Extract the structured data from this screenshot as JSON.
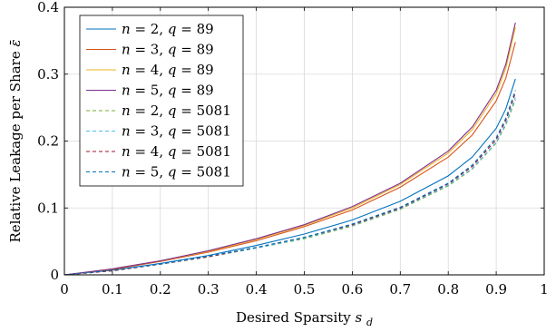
{
  "chart_data": {
    "type": "line",
    "title": "",
    "xlabel": "Desired Sparsity",
    "xlabel_symbol": "s",
    "xlabel_subscript": "d",
    "ylabel": "Relative Leakage per Share",
    "ylabel_symbol": "ε̄",
    "xlim": [
      0,
      1
    ],
    "ylim": [
      0,
      0.4
    ],
    "xticks": [
      0,
      0.1,
      0.2,
      0.3,
      0.4,
      0.5,
      0.6,
      0.7,
      0.8,
      0.9,
      1
    ],
    "yticks": [
      0,
      0.1,
      0.2,
      0.3,
      0.4
    ],
    "grid": true,
    "legend_position": "top-left",
    "x": [
      0,
      0.1,
      0.2,
      0.3,
      0.4,
      0.5,
      0.6,
      0.7,
      0.8,
      0.85,
      0.9,
      0.92,
      0.94
    ],
    "series": [
      {
        "name": "n = 2, q = 89",
        "n": "2",
        "q": "89",
        "color": "#0072BD",
        "dash": "solid",
        "values": [
          0,
          0.007,
          0.017,
          0.029,
          0.044,
          0.061,
          0.082,
          0.11,
          0.148,
          0.176,
          0.219,
          0.248,
          0.293
        ]
      },
      {
        "name": "n = 3, q = 89",
        "n": "3",
        "q": "89",
        "color": "#D95319",
        "dash": "solid",
        "values": [
          0,
          0.008,
          0.02,
          0.034,
          0.051,
          0.072,
          0.097,
          0.131,
          0.176,
          0.209,
          0.26,
          0.294,
          0.348
        ]
      },
      {
        "name": "n = 4, q = 89",
        "n": "4",
        "q": "89",
        "color": "#EDB120",
        "dash": "solid",
        "values": [
          0,
          0.009,
          0.021,
          0.035,
          0.053,
          0.074,
          0.1,
          0.135,
          0.182,
          0.217,
          0.271,
          0.309,
          0.37
        ]
      },
      {
        "name": "n = 5, q = 89",
        "n": "5",
        "q": "89",
        "color": "#7E2F8E",
        "dash": "solid",
        "values": [
          0,
          0.009,
          0.021,
          0.036,
          0.054,
          0.075,
          0.102,
          0.137,
          0.185,
          0.221,
          0.276,
          0.315,
          0.377
        ]
      },
      {
        "name": "n = 2, q = 5081",
        "n": "2",
        "q": "5081",
        "color": "#77AC30",
        "dash": "dashed",
        "values": [
          0,
          0.006,
          0.016,
          0.027,
          0.04,
          0.054,
          0.073,
          0.098,
          0.133,
          0.158,
          0.197,
          0.224,
          0.262
        ]
      },
      {
        "name": "n = 3, q = 5081",
        "n": "3",
        "q": "5081",
        "color": "#4DBEEE",
        "dash": "dashed",
        "values": [
          0,
          0.006,
          0.016,
          0.027,
          0.04,
          0.055,
          0.074,
          0.099,
          0.134,
          0.159,
          0.198,
          0.226,
          0.265
        ]
      },
      {
        "name": "n = 4, q = 5081",
        "n": "4",
        "q": "5081",
        "color": "#A2142F",
        "dash": "dashed",
        "values": [
          0,
          0.006,
          0.016,
          0.027,
          0.041,
          0.056,
          0.075,
          0.1,
          0.136,
          0.162,
          0.202,
          0.231,
          0.272
        ]
      },
      {
        "name": "n = 5, q = 5081",
        "n": "5",
        "q": "5081",
        "color": "#0072BD",
        "dash": "dashed",
        "values": [
          0,
          0.007,
          0.016,
          0.028,
          0.041,
          0.056,
          0.076,
          0.101,
          0.137,
          0.164,
          0.205,
          0.234,
          0.276
        ]
      }
    ]
  }
}
